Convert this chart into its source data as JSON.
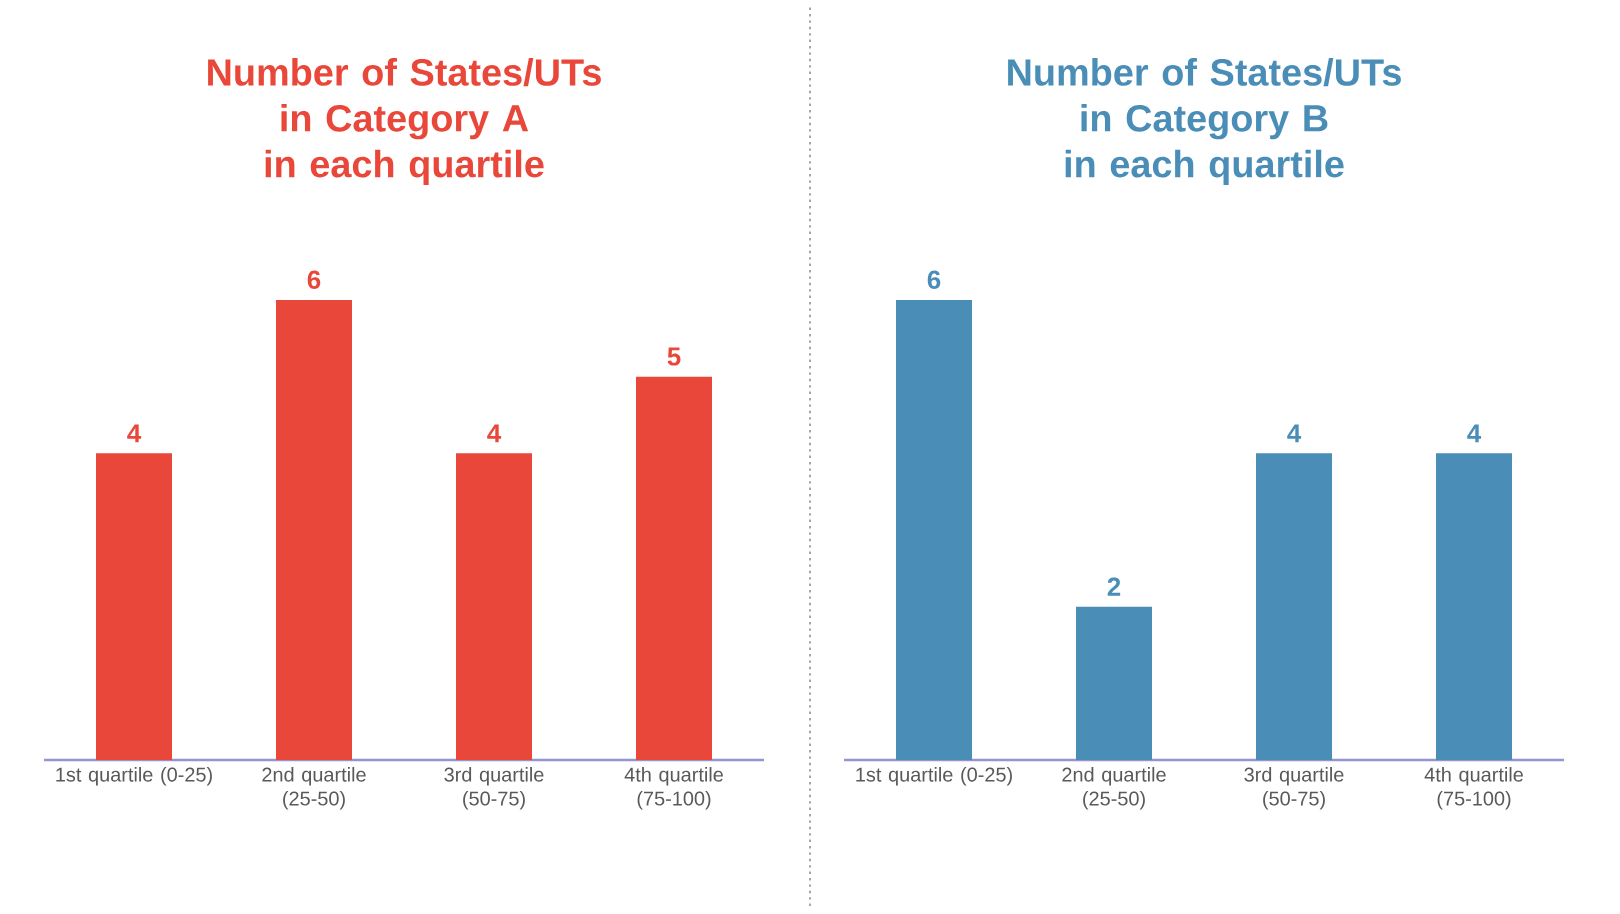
{
  "chart_data": [
    {
      "type": "bar",
      "title": "Number of States/UTs in Category A in each quartile",
      "categories": [
        "1st quartile (0-25)",
        "2nd quartile (25-50)",
        "3rd quartile (50-75)",
        "4th quartile (75-100)"
      ],
      "values": [
        4,
        6,
        4,
        5
      ],
      "color": "#e8473a",
      "data_labels": true
    },
    {
      "type": "bar",
      "title": "Number of States/UTs in Category B in each quartile",
      "categories": [
        "1st quartile (0-25)",
        "2nd quartile (25-50)",
        "3rd quartile (50-75)",
        "4th quartile (75-100)"
      ],
      "values": [
        6,
        2,
        4,
        4
      ],
      "color": "#4a8db7",
      "data_labels": true
    }
  ]
}
